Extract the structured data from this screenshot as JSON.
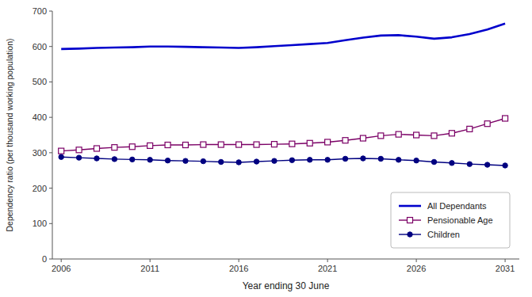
{
  "chart_data": {
    "type": "line",
    "xlabel": "Year ending 30 June",
    "ylabel": "Dependency ratio (per thousand working population)",
    "x": [
      2006,
      2007,
      2008,
      2009,
      2010,
      2011,
      2012,
      2013,
      2014,
      2015,
      2016,
      2017,
      2018,
      2019,
      2020,
      2021,
      2022,
      2023,
      2024,
      2025,
      2026,
      2027,
      2028,
      2029,
      2030,
      2031
    ],
    "series": [
      {
        "name": "All Dependants",
        "color": "#0000CC",
        "marker": "none",
        "values": [
          593,
          594,
          596,
          597,
          598,
          600,
          600,
          599,
          598,
          597,
          596,
          598,
          601,
          604,
          607,
          610,
          618,
          625,
          631,
          632,
          628,
          622,
          626,
          635,
          648,
          665
        ]
      },
      {
        "name": "Pensionable Age",
        "color": "#7B0066",
        "marker": "square",
        "values": [
          305,
          308,
          312,
          315,
          317,
          320,
          322,
          322,
          323,
          323,
          323,
          323,
          324,
          325,
          327,
          330,
          335,
          341,
          348,
          352,
          350,
          348,
          355,
          367,
          382,
          397
        ]
      },
      {
        "name": "Children",
        "color": "#000080",
        "marker": "circle",
        "values": [
          288,
          286,
          284,
          282,
          281,
          280,
          278,
          277,
          276,
          274,
          273,
          275,
          277,
          279,
          280,
          280,
          283,
          284,
          283,
          280,
          278,
          274,
          271,
          268,
          266,
          264
        ]
      }
    ],
    "xlim": [
      2005.5,
      2031.8
    ],
    "xticks": [
      2006,
      2011,
      2016,
      2021,
      2026,
      2031
    ],
    "ylim": [
      0,
      700
    ],
    "yticks": [
      0,
      100,
      200,
      300,
      400,
      500,
      600,
      700
    ],
    "grid": false,
    "legend": "lower right"
  }
}
